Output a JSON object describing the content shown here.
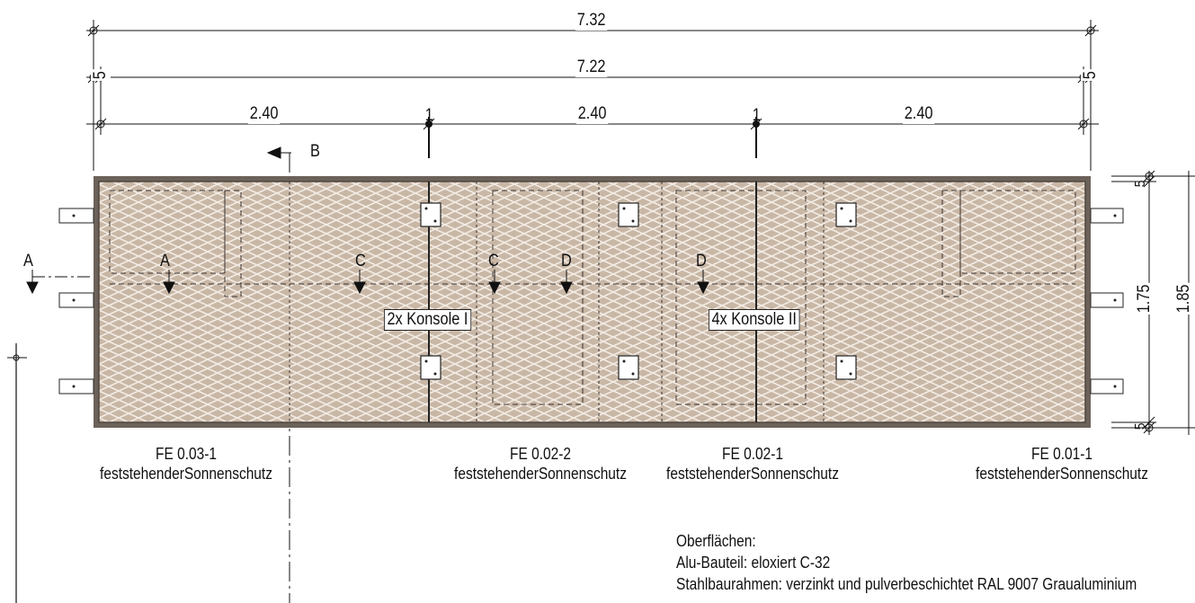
{
  "dimensions": {
    "overall_outer": "7.32",
    "overall_inner": "7.22",
    "end_offset_left": "5",
    "end_offset_right": "5",
    "bay_1": "2.40",
    "bay_2": "2.40",
    "bay_3": "2.40",
    "joint_1": "1",
    "joint_2": "1",
    "height_inner": "1.75",
    "height_outer": "1.85",
    "top_offset": "5",
    "bottom_offset": "5"
  },
  "section_marks": {
    "A_outer": "A",
    "A_inner": "A",
    "B": "B",
    "C_left": "C",
    "C_right": "C",
    "D_left": "D",
    "D_right": "D"
  },
  "consoles": {
    "left": "2x Konsole I",
    "right": "4x Konsole II"
  },
  "elements": [
    {
      "code": "FE 0.03-1",
      "type": "feststehenderSonnenschutz"
    },
    {
      "code": "FE 0.02-2",
      "type": "feststehenderSonnenschutz"
    },
    {
      "code": "FE 0.02-1",
      "type": "feststehenderSonnenschutz"
    },
    {
      "code": "FE 0.01-1",
      "type": "feststehenderSonnenschutz"
    }
  ],
  "notes": {
    "title": "Oberflächen:",
    "line_1": "Alu-Bauteil: eloxiert C-32",
    "line_2": "Stahlbaurahmen: verzinkt und pulverbeschichtet RAL 9007 Graualuminium"
  },
  "colors": {
    "frame": "#6b625a",
    "mesh_fill": "#c9b7a6",
    "mesh_line": "#f3ece4",
    "line": "#111111"
  }
}
